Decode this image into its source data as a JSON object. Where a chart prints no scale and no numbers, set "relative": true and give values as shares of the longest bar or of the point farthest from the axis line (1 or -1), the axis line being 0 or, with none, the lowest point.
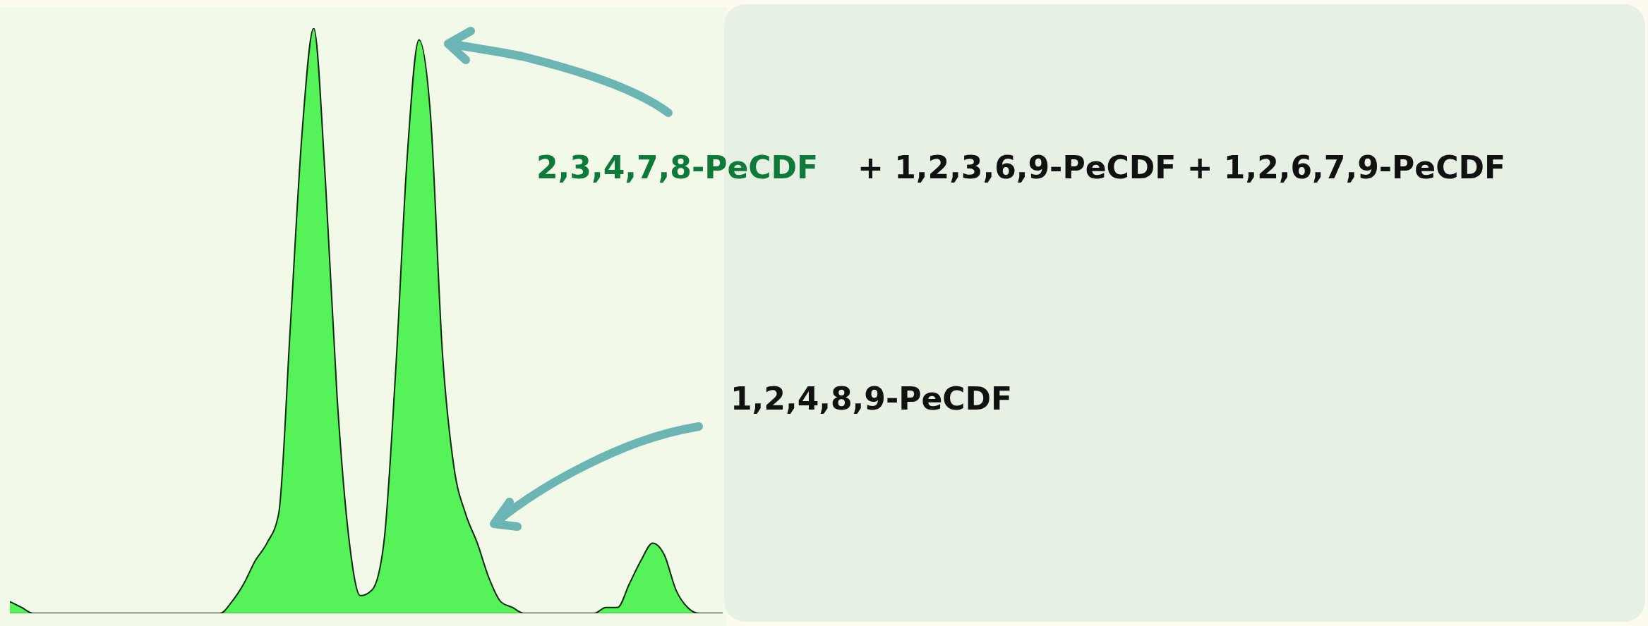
{
  "chart_data": {
    "type": "area",
    "relative": true,
    "color": "#12f01e",
    "categories": [
      null,
      null,
      null,
      null,
      null,
      null,
      null,
      null,
      null,
      null,
      null,
      null,
      null,
      null,
      null,
      null,
      null,
      null,
      null,
      null,
      null,
      null,
      null,
      null,
      null,
      null,
      null,
      null,
      null,
      null,
      null,
      null,
      null,
      null,
      null,
      null,
      null,
      null,
      null,
      null,
      null,
      null,
      null,
      null,
      null,
      null,
      null,
      null,
      null,
      null,
      null,
      null,
      null,
      null,
      null,
      null,
      null,
      null,
      null,
      null,
      null,
      null
    ],
    "values": [
      0.02,
      0.01,
      0,
      0,
      0,
      0,
      0,
      0,
      0,
      0,
      0,
      0,
      0,
      0,
      0,
      0,
      0,
      0,
      0,
      0.02,
      0.05,
      0.09,
      0.12,
      0.17,
      0.49,
      0.82,
      1,
      0.74,
      0.37,
      0.13,
      0.03,
      0.04,
      0.12,
      0.41,
      0.78,
      0.98,
      0.85,
      0.45,
      0.25,
      0.17,
      0.12,
      0.06,
      0.02,
      0.01,
      0,
      0,
      0,
      0,
      0,
      0,
      0,
      0.01,
      0.01,
      0.05,
      0.09,
      0.12,
      0.1,
      0.04,
      0.01,
      0,
      0,
      0
    ],
    "annotations": [
      "2,3,4,7,8-PeCDF",
      "+ 1,2,3,6,9-PeCDF + 1,2,6,7,9-PeCDF",
      "1,2,4,8,9-PeCDF"
    ]
  }
}
